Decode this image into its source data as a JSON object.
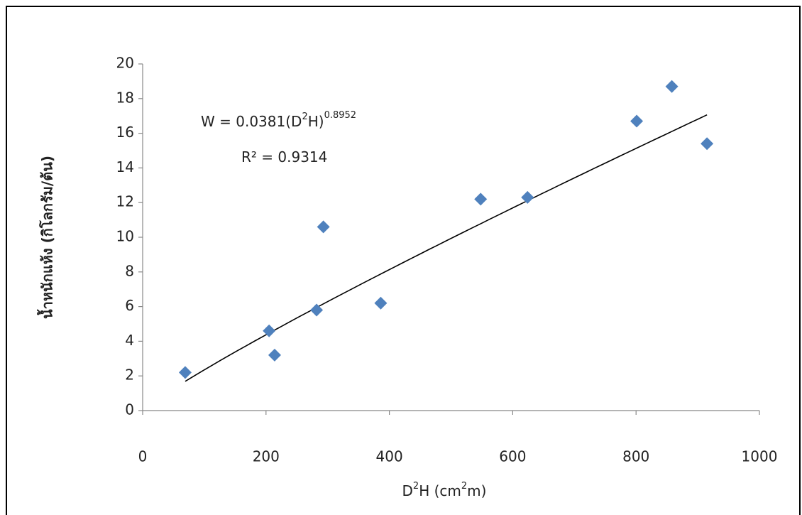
{
  "chart_data": {
    "type": "scatter",
    "x": [
      69,
      205,
      214,
      282,
      386,
      293,
      548,
      624,
      801,
      858,
      915
    ],
    "series": [
      {
        "color": "#4f81bd",
        "values": [
          2.2,
          4.6,
          3.2,
          5.8,
          6.2,
          10.6,
          12.2,
          12.3,
          16.7,
          18.7,
          15.4
        ]
      }
    ],
    "xlim": [
      0,
      1000
    ],
    "xticks": [
      0,
      200,
      400,
      600,
      800,
      1000
    ],
    "ylim": [
      0,
      20
    ],
    "yticks": [
      0,
      2,
      4,
      6,
      8,
      10,
      12,
      14,
      16,
      18,
      20
    ],
    "grid": false,
    "x_label": {
      "base": "D",
      "base_sup": "2",
      "mid": "H (cm",
      "unit_sup": "2",
      "end": "m)"
    },
    "y_label": "น้ำหนักแห้ง (กิโลกรัม/ต้น)",
    "trendline": {
      "prefix": "W = ",
      "coefficient": 0.0381,
      "base": "(D",
      "base_sup": "2",
      "base_end": "H)",
      "exponent": 0.8952,
      "r2_prefix": "R² = ",
      "r2": 0.9314,
      "color": "#000000"
    }
  }
}
